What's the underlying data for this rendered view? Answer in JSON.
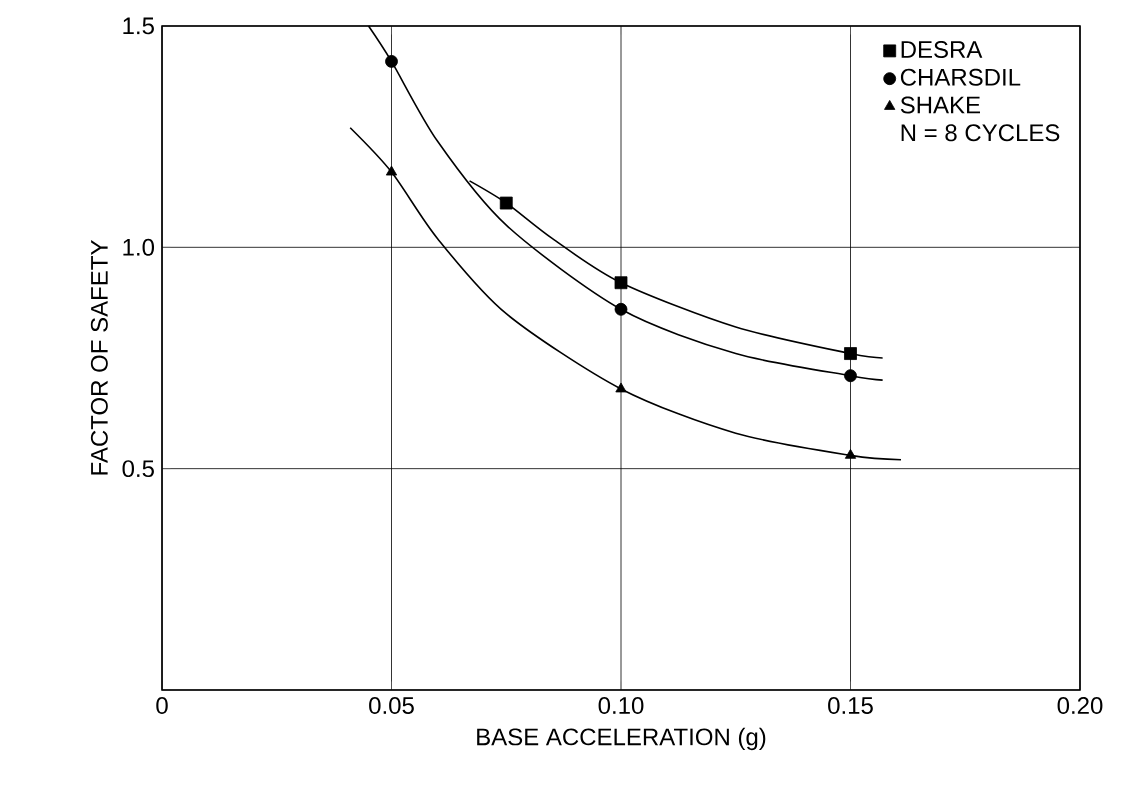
{
  "chart_data": {
    "type": "scatter",
    "xlabel": "BASE ACCELERATION (g)",
    "ylabel": "FACTOR OF SAFETY",
    "xlim": [
      0,
      0.2
    ],
    "ylim": [
      0,
      1.5
    ],
    "xticks": [
      0,
      0.05,
      {
        "value": 0.1,
        "label": "0.10"
      },
      0.15,
      {
        "value": 0.2,
        "label": "0.20"
      }
    ],
    "yticks": [
      {
        "value": 0,
        "label": null
      },
      0.5,
      {
        "value": 1.0,
        "label": "1.0"
      },
      1.5
    ],
    "grid": true,
    "legend": "top right",
    "annotations": [
      "N = 8 CYCLES"
    ],
    "series": [
      {
        "name": "DESRA",
        "marker": "square",
        "color": "#000000",
        "x": [
          0.075,
          0.1,
          0.15
        ],
        "values": [
          1.1,
          0.92,
          0.76
        ]
      },
      {
        "name": "CHARSDIL",
        "marker": "circle",
        "color": "#000000",
        "x": [
          0.05,
          0.1,
          0.15
        ],
        "values": [
          1.42,
          0.86,
          0.71
        ]
      },
      {
        "name": "SHAKE",
        "marker": "triangle",
        "color": "#000000",
        "x": [
          0.05,
          0.1,
          0.15
        ],
        "values": [
          1.17,
          0.68,
          0.53
        ]
      },
      {
        "type": "line",
        "marker": "none",
        "color": "#000000",
        "x": [
          0.067,
          0.075,
          0.085,
          0.1,
          0.125,
          0.15,
          0.157
        ],
        "values": [
          1.15,
          1.1,
          1.02,
          0.92,
          0.82,
          0.76,
          0.75
        ]
      },
      {
        "type": "line",
        "marker": "none",
        "color": "#000000",
        "x": [
          0.045,
          0.05,
          0.06,
          0.075,
          0.1,
          0.125,
          0.15,
          0.157
        ],
        "values": [
          1.5,
          1.42,
          1.24,
          1.05,
          0.86,
          0.76,
          0.71,
          0.7
        ]
      },
      {
        "type": "line",
        "marker": "none",
        "color": "#000000",
        "x": [
          0.041,
          0.05,
          0.06,
          0.075,
          0.1,
          0.125,
          0.15,
          0.161
        ],
        "values": [
          1.27,
          1.17,
          1.02,
          0.85,
          0.68,
          0.58,
          0.53,
          0.52
        ]
      }
    ]
  }
}
